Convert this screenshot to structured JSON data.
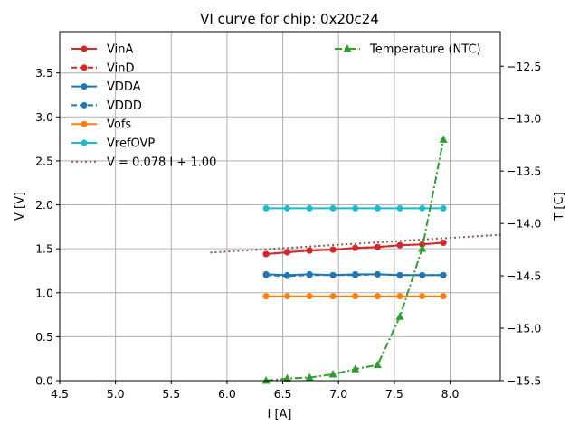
{
  "chart_data": {
    "type": "line",
    "title": "VI curve for chip: 0x20c24",
    "xlabel": "I [A]",
    "ylabel": "V [V]",
    "y2label": "T [C]",
    "xlim": [
      4.5,
      8.45
    ],
    "ylim": [
      0.0,
      3.97
    ],
    "y2lim": [
      -15.5,
      -12.17
    ],
    "xticks": [
      "4.5",
      "5.0",
      "5.5",
      "6.0",
      "6.5",
      "7.0",
      "7.5",
      "8.0"
    ],
    "xtick_values": [
      4.5,
      5.0,
      5.5,
      6.0,
      6.5,
      7.0,
      7.5,
      8.0
    ],
    "yticks": [
      "0.0",
      "0.5",
      "1.0",
      "1.5",
      "2.0",
      "2.5",
      "3.0",
      "3.5"
    ],
    "ytick_values": [
      0.0,
      0.5,
      1.0,
      1.5,
      2.0,
      2.5,
      3.0,
      3.5
    ],
    "y2ticks": [
      "−15.5",
      "−15.0",
      "−14.5",
      "−14.0",
      "−13.5",
      "−13.0",
      "−12.5"
    ],
    "y2tick_values": [
      -15.5,
      -15.0,
      -14.5,
      -14.0,
      -13.5,
      -13.0,
      -12.5
    ],
    "grid": true,
    "x": [
      6.35,
      6.54,
      6.74,
      6.95,
      7.15,
      7.35,
      7.55,
      7.75,
      7.94
    ],
    "series": [
      {
        "name": "VinA",
        "color": "#d62728",
        "dash": "solid",
        "marker": "circle",
        "axis": "left",
        "values": [
          1.44,
          1.46,
          1.48,
          1.49,
          1.51,
          1.52,
          1.54,
          1.55,
          1.57
        ]
      },
      {
        "name": "VinD",
        "color": "#d62728",
        "dash": "dashed",
        "marker": "circle",
        "axis": "left",
        "values": [
          1.44,
          1.46,
          1.48,
          1.49,
          1.51,
          1.52,
          1.54,
          1.55,
          1.57
        ]
      },
      {
        "name": "VDDA",
        "color": "#1f77b4",
        "dash": "solid",
        "marker": "circle",
        "axis": "left",
        "values": [
          1.21,
          1.2,
          1.21,
          1.2,
          1.21,
          1.21,
          1.2,
          1.2,
          1.2
        ]
      },
      {
        "name": "VDDD",
        "color": "#1f77b4",
        "dash": "dashed",
        "marker": "circle",
        "axis": "left",
        "values": [
          1.2,
          1.19,
          1.2,
          1.2,
          1.2,
          1.21,
          1.2,
          1.2,
          1.2
        ]
      },
      {
        "name": "Vofs",
        "color": "#ff7f0e",
        "dash": "solid",
        "marker": "circle",
        "axis": "left",
        "values": [
          0.96,
          0.96,
          0.96,
          0.96,
          0.96,
          0.96,
          0.96,
          0.96,
          0.96
        ]
      },
      {
        "name": "VrefOVP",
        "color": "#17becf",
        "dash": "solid",
        "marker": "circle",
        "axis": "left",
        "values": [
          1.96,
          1.96,
          1.96,
          1.96,
          1.96,
          1.96,
          1.96,
          1.96,
          1.96
        ]
      },
      {
        "name": "Temperature (NTC)",
        "color": "#2ca02c",
        "dash": "dashdot",
        "marker": "triangle",
        "axis": "right",
        "values": [
          -15.5,
          -15.48,
          -15.47,
          -15.44,
          -15.39,
          -15.35,
          -14.89,
          -14.24,
          -13.2
        ]
      }
    ],
    "fit": {
      "label": "V = 0.078 I + 1.00",
      "slope": 0.078,
      "intercept": 1.0,
      "color": "#8c564b",
      "dash": "dotted",
      "x_range": [
        5.85,
        8.45
      ]
    },
    "legend_left": "top-left",
    "legend_right": "top-right"
  }
}
